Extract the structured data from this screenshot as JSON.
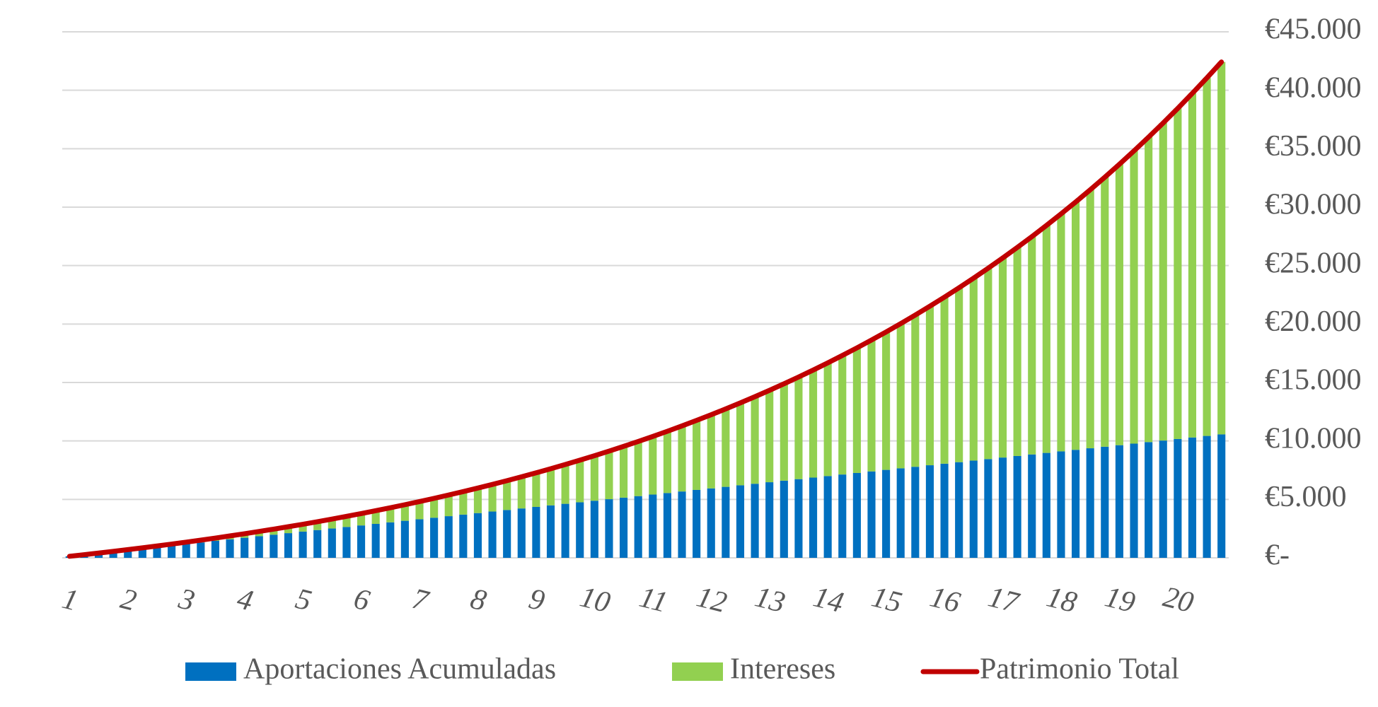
{
  "chart_data": {
    "type": "bar",
    "stacked": true,
    "grid": true,
    "legend": "bottom",
    "categories": [
      "1",
      null,
      null,
      null,
      "2",
      null,
      null,
      null,
      "3",
      null,
      null,
      null,
      "4",
      null,
      null,
      null,
      "5",
      null,
      null,
      null,
      "6",
      null,
      null,
      null,
      "7",
      null,
      null,
      null,
      "8",
      null,
      null,
      null,
      "9",
      null,
      null,
      null,
      "10",
      null,
      null,
      null,
      "11",
      null,
      null,
      null,
      "12",
      null,
      null,
      null,
      "13",
      null,
      null,
      null,
      "14",
      null,
      null,
      null,
      "15",
      null,
      null,
      null,
      "16",
      null,
      null,
      null,
      "17",
      null,
      null,
      null,
      "18",
      null,
      null,
      null,
      "19",
      null,
      null,
      null,
      "20",
      null,
      null,
      null
    ],
    "series": [
      {
        "name": "Aportaciones Acumuladas",
        "type": "bar",
        "color": "#0070c0",
        "values": [
          132,
          264,
          396,
          528,
          660,
          792,
          924,
          1056,
          1188,
          1320,
          1452,
          1584,
          1716,
          1848,
          1980,
          2112,
          2244,
          2376,
          2508,
          2640,
          2772,
          2904,
          3036,
          3168,
          3300,
          3432,
          3564,
          3696,
          3828,
          3960,
          4092,
          4224,
          4356,
          4488,
          4620,
          4752,
          4884,
          5016,
          5148,
          5280,
          5412,
          5544,
          5676,
          5808,
          5940,
          6072,
          6204,
          6336,
          6468,
          6600,
          6732,
          6864,
          6996,
          7128,
          7260,
          7392,
          7524,
          7656,
          7788,
          7920,
          8052,
          8184,
          8316,
          8448,
          8580,
          8712,
          8844,
          8976,
          9108,
          9240,
          9372,
          9504,
          9636,
          9768,
          9900,
          10032,
          10164,
          10296,
          10428,
          10560
        ]
      },
      {
        "name": "Intereses",
        "type": "bar",
        "color": "#92d050",
        "values": [
          0,
          4,
          12,
          24,
          41,
          62,
          88,
          118,
          153,
          193,
          238,
          290,
          345,
          407,
          475,
          549,
          628,
          715,
          807,
          907,
          1013,
          1127,
          1248,
          1376,
          1513,
          1657,
          1810,
          1971,
          2141,
          2320,
          2508,
          2706,
          2914,
          3132,
          3361,
          3601,
          3851,
          4113,
          4387,
          4673,
          4972,
          5283,
          5608,
          5947,
          6299,
          6666,
          7048,
          7446,
          7859,
          8289,
          8736,
          9200,
          9682,
          10182,
          10701,
          11240,
          11799,
          12379,
          12980,
          13603,
          14249,
          14918,
          15611,
          16329,
          17072,
          17842,
          18638,
          19463,
          20316,
          21198,
          22112,
          23056,
          24033,
          25043,
          26087,
          27167,
          28283,
          29436,
          30628,
          31860
        ]
      },
      {
        "name": "Patrimonio Total",
        "type": "line",
        "color": "#c00000",
        "values": [
          132,
          268,
          408,
          552,
          701,
          854,
          1012,
          1174,
          1341,
          1513,
          1690,
          1874,
          2061,
          2255,
          2455,
          2661,
          2872,
          3091,
          3315,
          3547,
          3785,
          4031,
          4284,
          4544,
          4813,
          5089,
          5374,
          5667,
          5969,
          6280,
          6600,
          6930,
          7270,
          7620,
          7981,
          8353,
          8735,
          9129,
          9535,
          9953,
          10384,
          10827,
          11284,
          11755,
          12239,
          12738,
          13252,
          13782,
          14327,
          14889,
          15468,
          16064,
          16678,
          17310,
          17961,
          18632,
          19323,
          20035,
          20768,
          21523,
          22301,
          23102,
          23927,
          24777,
          25652,
          26554,
          27482,
          28439,
          29424,
          30438,
          31484,
          32560,
          33669,
          34811,
          35987,
          37199,
          38447,
          39732,
          41056,
          42420
        ]
      }
    ],
    "ylim": [
      0,
      45000
    ],
    "yticks": [
      {
        "value": 0,
        "label": "€-"
      },
      {
        "value": 5000,
        "label": "€5.000"
      },
      {
        "value": 10000,
        "label": "€10.000"
      },
      {
        "value": 15000,
        "label": "€15.000"
      },
      {
        "value": 20000,
        "label": "€20.000"
      },
      {
        "value": 25000,
        "label": "€25.000"
      },
      {
        "value": 30000,
        "label": "€30.000"
      },
      {
        "value": 35000,
        "label": "€35.000"
      },
      {
        "value": 40000,
        "label": "€40.000"
      },
      {
        "value": 45000,
        "label": "€45.000"
      }
    ]
  }
}
